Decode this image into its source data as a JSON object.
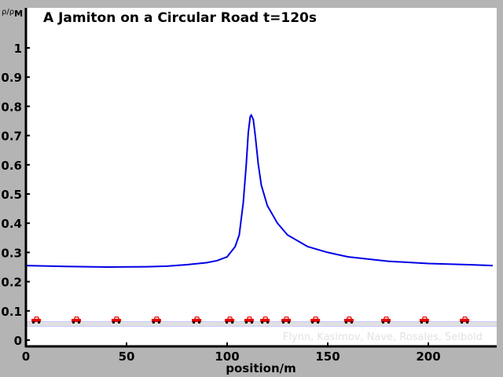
{
  "chart_data": {
    "type": "line",
    "title": "A  Jamiton on a Circular Road",
    "time_label": "t=120s",
    "xlabel": "position/m",
    "ylabel": "ρ/ρ",
    "ylabel_sub": "M",
    "credit": "Flynn, Kasimov, Nave, Rosales, Seibold",
    "xlim": [
      0,
      232
    ],
    "ylim": [
      -0.02,
      1.12
    ],
    "xticks": [
      0,
      50,
      100,
      150,
      200
    ],
    "yticks": [
      0,
      0.1,
      0.2,
      0.3,
      0.4,
      0.5,
      0.6,
      0.7,
      0.8,
      0.9,
      1
    ],
    "ytick_labels": [
      "0",
      "0.1",
      "0.2",
      "0.3",
      "0.4",
      "0.5",
      "0.6",
      "0.7",
      "0.8",
      "0.9",
      "1"
    ],
    "grid": false,
    "line_color": "#0000e6",
    "car_color": "#e60000",
    "series": [
      {
        "x": [
          0,
          20,
          40,
          60,
          70,
          80,
          90,
          95,
          100,
          104,
          106,
          108,
          109.5,
          110.5,
          111.5,
          112,
          113,
          114,
          115.5,
          117,
          120,
          125,
          130,
          140,
          150,
          160,
          180,
          200,
          220,
          232
        ],
        "y": [
          0.255,
          0.252,
          0.25,
          0.251,
          0.253,
          0.258,
          0.265,
          0.272,
          0.285,
          0.32,
          0.36,
          0.47,
          0.6,
          0.71,
          0.765,
          0.77,
          0.755,
          0.7,
          0.6,
          0.53,
          0.46,
          0.4,
          0.36,
          0.32,
          0.3,
          0.285,
          0.27,
          0.262,
          0.258,
          0.255
        ]
      }
    ],
    "cars": {
      "y": 0.07,
      "positions": [
        5.1,
        25,
        44.9,
        64.8,
        84.8,
        101.2,
        110.9,
        118.8,
        129.3,
        143.8,
        160.5,
        178.9,
        198.0,
        218
      ]
    },
    "road_level": 0.055
  }
}
